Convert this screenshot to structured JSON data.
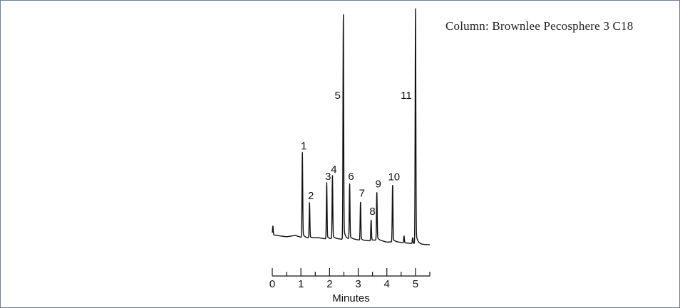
{
  "annotation": {
    "column": "Column: Brownlee Pecosphere 3 C18"
  },
  "chart_data": {
    "type": "line",
    "title": "",
    "xlabel": "Minutes",
    "ylabel": "",
    "xlim": [
      0,
      5.5
    ],
    "ylim": [
      0,
      100
    ],
    "x_ticks": [
      0,
      1,
      2,
      3,
      4,
      5
    ],
    "x_minor_ticks": [
      0.5,
      1.5,
      2.5,
      3.5,
      4.5,
      5.5
    ],
    "grid": false,
    "legend": "none",
    "baseline": {
      "x": [
        0,
        0.2,
        0.5,
        0.8,
        1.0,
        1.3,
        1.6,
        1.9,
        2.2,
        2.5,
        2.8,
        3.1,
        3.4,
        3.7,
        4.0,
        4.3,
        4.6,
        4.9,
        5.2,
        5.5
      ],
      "y": [
        5,
        4.7,
        4.2,
        4.8,
        4.0,
        3.6,
        3.8,
        3.2,
        3.4,
        3.0,
        3.2,
        2.6,
        2.4,
        2.8,
        1.8,
        2.0,
        1.4,
        1.2,
        0.8,
        0.6
      ]
    },
    "peaks": [
      {
        "label": "1",
        "x": 1.05,
        "height": 37
      },
      {
        "label": "2",
        "x": 1.3,
        "height": 15
      },
      {
        "label": "3",
        "x": 1.9,
        "height": 24
      },
      {
        "label": "4",
        "x": 2.1,
        "height": 27
      },
      {
        "label": "5",
        "x": 2.48,
        "height": 98
      },
      {
        "label": "6",
        "x": 2.7,
        "height": 24
      },
      {
        "label": "7",
        "x": 3.08,
        "height": 17
      },
      {
        "label": "8",
        "x": 3.45,
        "height": 9
      },
      {
        "label": "9",
        "x": 3.65,
        "height": 21
      },
      {
        "label": "10",
        "x": 4.2,
        "height": 25
      },
      {
        "label": "11",
        "x": 5.0,
        "height": 100
      }
    ],
    "minor_peaks": [
      {
        "x": 0.02,
        "height": 4
      },
      {
        "x": 4.6,
        "height": 3
      },
      {
        "x": 4.9,
        "height": 2.5
      }
    ]
  }
}
